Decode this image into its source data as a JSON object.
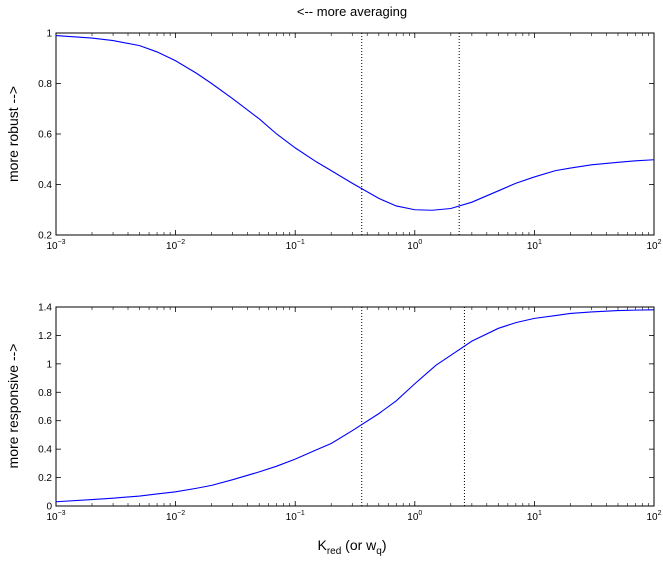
{
  "chart_data": [
    {
      "type": "line",
      "title": "<-- more averaging",
      "xlabel": "",
      "ylabel": "more robust -->",
      "xscale": "log",
      "xlim": [
        0.001,
        100
      ],
      "ylim": [
        0.2,
        1.0
      ],
      "x_tick_bases": [
        "10",
        "10",
        "10",
        "10",
        "10",
        "10"
      ],
      "x_tick_exponents": [
        "−3",
        "−2",
        "−1",
        "0",
        "1",
        "2"
      ],
      "x_tick_values": [
        0.001,
        0.01,
        0.1,
        1,
        10,
        100
      ],
      "y_ticks": [
        0.2,
        0.4,
        0.6,
        0.8,
        1
      ],
      "y_tick_labels": [
        "0.2",
        "0.4",
        "0.6",
        "0.8",
        "1"
      ],
      "grid": false,
      "line_color": "#0000ff",
      "vlines": [
        0.36,
        2.35
      ],
      "series": [
        {
          "x": [
            0.001,
            0.002,
            0.003,
            0.005,
            0.007,
            0.01,
            0.015,
            0.02,
            0.03,
            0.05,
            0.07,
            0.1,
            0.15,
            0.2,
            0.3,
            0.5,
            0.7,
            1,
            1.4,
            2,
            3,
            5,
            7,
            10,
            15,
            20,
            30,
            50,
            70,
            100
          ],
          "y": [
            0.99,
            0.98,
            0.97,
            0.95,
            0.925,
            0.89,
            0.84,
            0.8,
            0.74,
            0.66,
            0.6,
            0.545,
            0.49,
            0.455,
            0.405,
            0.345,
            0.315,
            0.3,
            0.298,
            0.305,
            0.33,
            0.375,
            0.405,
            0.43,
            0.455,
            0.465,
            0.478,
            0.488,
            0.494,
            0.498
          ]
        }
      ]
    },
    {
      "type": "line",
      "title": "",
      "xlabel": "K",
      "xlabel_sub_1": "red",
      "xlabel_mid": " (or w",
      "xlabel_sub_2": "q",
      "xlabel_end": ")",
      "ylabel": "more responsive -->",
      "xscale": "log",
      "xlim": [
        0.001,
        100
      ],
      "ylim": [
        0,
        1.4
      ],
      "x_tick_bases": [
        "10",
        "10",
        "10",
        "10",
        "10",
        "10"
      ],
      "x_tick_exponents": [
        "−3",
        "−2",
        "−1",
        "0",
        "1",
        "2"
      ],
      "x_tick_values": [
        0.001,
        0.01,
        0.1,
        1,
        10,
        100
      ],
      "y_ticks": [
        0,
        0.2,
        0.4,
        0.6,
        0.8,
        1,
        1.2,
        1.4
      ],
      "y_tick_labels": [
        "0",
        "0.2",
        "0.4",
        "0.6",
        "0.8",
        "1",
        "1.2",
        "1.4"
      ],
      "grid": false,
      "line_color": "#0000ff",
      "vlines": [
        0.36,
        2.6
      ],
      "series": [
        {
          "x": [
            0.001,
            0.002,
            0.003,
            0.005,
            0.007,
            0.01,
            0.015,
            0.02,
            0.03,
            0.05,
            0.07,
            0.1,
            0.15,
            0.2,
            0.3,
            0.5,
            0.7,
            1,
            1.5,
            2,
            3,
            5,
            7,
            10,
            15,
            20,
            30,
            50,
            70,
            100
          ],
          "y": [
            0.03,
            0.045,
            0.055,
            0.07,
            0.085,
            0.1,
            0.125,
            0.145,
            0.185,
            0.24,
            0.28,
            0.33,
            0.395,
            0.44,
            0.53,
            0.65,
            0.74,
            0.86,
            0.99,
            1.06,
            1.16,
            1.25,
            1.29,
            1.32,
            1.34,
            1.355,
            1.365,
            1.375,
            1.378,
            1.38
          ]
        }
      ]
    }
  ]
}
